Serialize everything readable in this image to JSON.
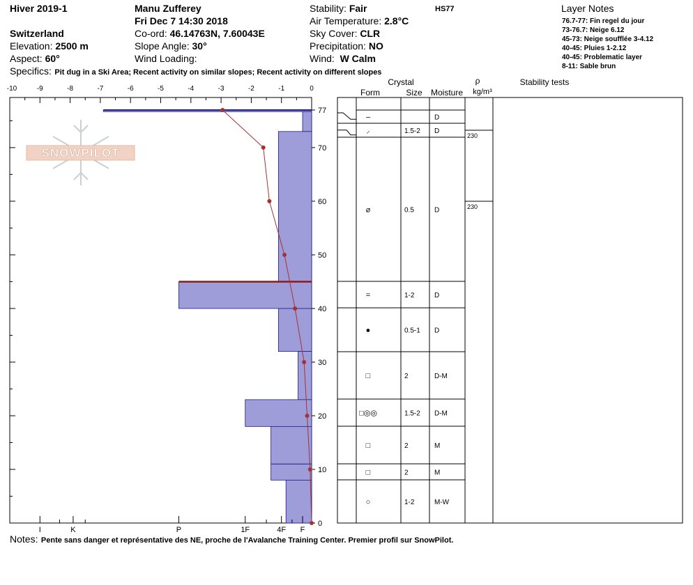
{
  "header": {
    "season": "Hiver 2019-1",
    "location": "Switzerland",
    "elevation_label": "Elevation:",
    "elevation_value": "2500 m",
    "aspect_label": "Aspect:",
    "aspect_value": "60°",
    "observer": "Manu Zufferey",
    "datetime": "Fri Dec 7 14:30 2018",
    "coord_label": "Co-ord:",
    "coord_value": "46.14763N, 7.60043E",
    "slope_label": "Slope Angle:",
    "slope_value": "30°",
    "wind_loading_label": "Wind Loading:",
    "stability_label": "Stability:",
    "stability_value": "Fair",
    "air_temp_label": "Air Temperature:",
    "air_temp_value": "2.8°C",
    "sky_label": "Sky Cover:",
    "sky_value": "CLR",
    "precip_label": "Precipitation:",
    "precip_value": "NO",
    "wind_label": "Wind:",
    "wind_value": "W Calm",
    "hs": "HS77",
    "specifics_label": "Specifics:",
    "specifics_value": "Pit dug in a Ski Area; Recent activity on similar slopes; Recent activity on different slopes"
  },
  "layer_notes": {
    "title": "Layer Notes",
    "items": [
      "76.7-77: Fin regel du jour",
      "73-76.7: Neige 6.12",
      "45-73: Neige soufflée 3-4.12",
      "40-45: Pluies 1-2.12",
      "40-45: Problematic layer",
      "8-11: Sable brun"
    ]
  },
  "notes": {
    "label": "Notes:",
    "text": "Pente sans danger et représentative des NE, proche de l'Avalanche Training Center. Premier profil sur SnowPilot."
  },
  "logo_text": "SNOWPILOT",
  "table": {
    "crystal_label": "Crystal",
    "form_label": "Form",
    "size_label": "Size",
    "moisture_label": "Moisture",
    "rho_label": "ρ",
    "density_unit": "kg/m³",
    "stability_label": "Stability tests",
    "rows": [
      {
        "top": 77,
        "bottom": 76.7,
        "form": "–",
        "size": "",
        "moisture": "D"
      },
      {
        "top": 76.7,
        "bottom": 73,
        "form": "⸝",
        "size": "1.5-2",
        "moisture": "D"
      },
      {
        "top": 73,
        "bottom": 45,
        "form": "⌀",
        "size": "0.5",
        "moisture": "D"
      },
      {
        "top": 45,
        "bottom": 40,
        "form": "=",
        "size": "1-2",
        "moisture": "D"
      },
      {
        "top": 40,
        "bottom": 32,
        "form": "●",
        "size": "0.5-1",
        "moisture": "D"
      },
      {
        "top": 32,
        "bottom": 23,
        "form": "□",
        "size": "2",
        "moisture": "D-M"
      },
      {
        "top": 23,
        "bottom": 18,
        "form": "□◎◎",
        "size": "1.5-2",
        "moisture": "D-M"
      },
      {
        "top": 18,
        "bottom": 11,
        "form": "□",
        "size": "2",
        "moisture": "M"
      },
      {
        "top": 11,
        "bottom": 8,
        "form": "□",
        "size": "2",
        "moisture": "M"
      },
      {
        "top": 8,
        "bottom": 0,
        "form": "○",
        "size": "1-2",
        "moisture": "M-W"
      }
    ],
    "densities": [
      {
        "depth": 73,
        "value": "230"
      },
      {
        "depth": 60,
        "value": "230"
      }
    ]
  },
  "chart_data": {
    "type": "line",
    "title": "",
    "temperature_axis": {
      "range": [
        -10,
        0
      ],
      "ticks": [
        "-10",
        "-9",
        "-8",
        "-7",
        "-6",
        "-5",
        "-4",
        "-3",
        "-2",
        "-1",
        "0"
      ]
    },
    "height_axis": {
      "range": [
        0,
        77
      ],
      "ticks": [
        "77",
        "70",
        "60",
        "50",
        "40",
        "30",
        "20",
        "10",
        "0"
      ]
    },
    "hardness_axis": {
      "ticks": [
        "I",
        "K",
        "P",
        "1F",
        "4F",
        "F"
      ]
    },
    "temperature_profile": {
      "height": [
        77,
        70,
        60,
        50,
        40,
        30,
        20,
        10,
        0
      ],
      "temperature": [
        -2.95,
        -1.6,
        -1.4,
        -0.9,
        -0.55,
        -0.25,
        -0.15,
        -0.05,
        0.0
      ]
    },
    "hardness_profile": [
      {
        "top": 77,
        "bottom": 76.7,
        "hardness": -6.9
      },
      {
        "top": 76.7,
        "bottom": 73,
        "hardness": -0.3
      },
      {
        "top": 73,
        "bottom": 45,
        "hardness": -1.1
      },
      {
        "top": 45,
        "bottom": 40,
        "hardness": -4.4
      },
      {
        "top": 40,
        "bottom": 32,
        "hardness": -1.1
      },
      {
        "top": 32,
        "bottom": 23,
        "hardness": -0.45
      },
      {
        "top": 23,
        "bottom": 18,
        "hardness": -2.2
      },
      {
        "top": 18,
        "bottom": 8,
        "hardness": -1.35
      },
      {
        "top": 8,
        "bottom": 0,
        "hardness": -0.85
      }
    ],
    "problematic_layer": {
      "top": 45,
      "bottom": 40
    },
    "colors": {
      "layer_fill": "#9e9cd9",
      "layer_stroke": "#1c1c8c",
      "temperature": "#a33333",
      "problem": "#8b1a1a"
    }
  }
}
